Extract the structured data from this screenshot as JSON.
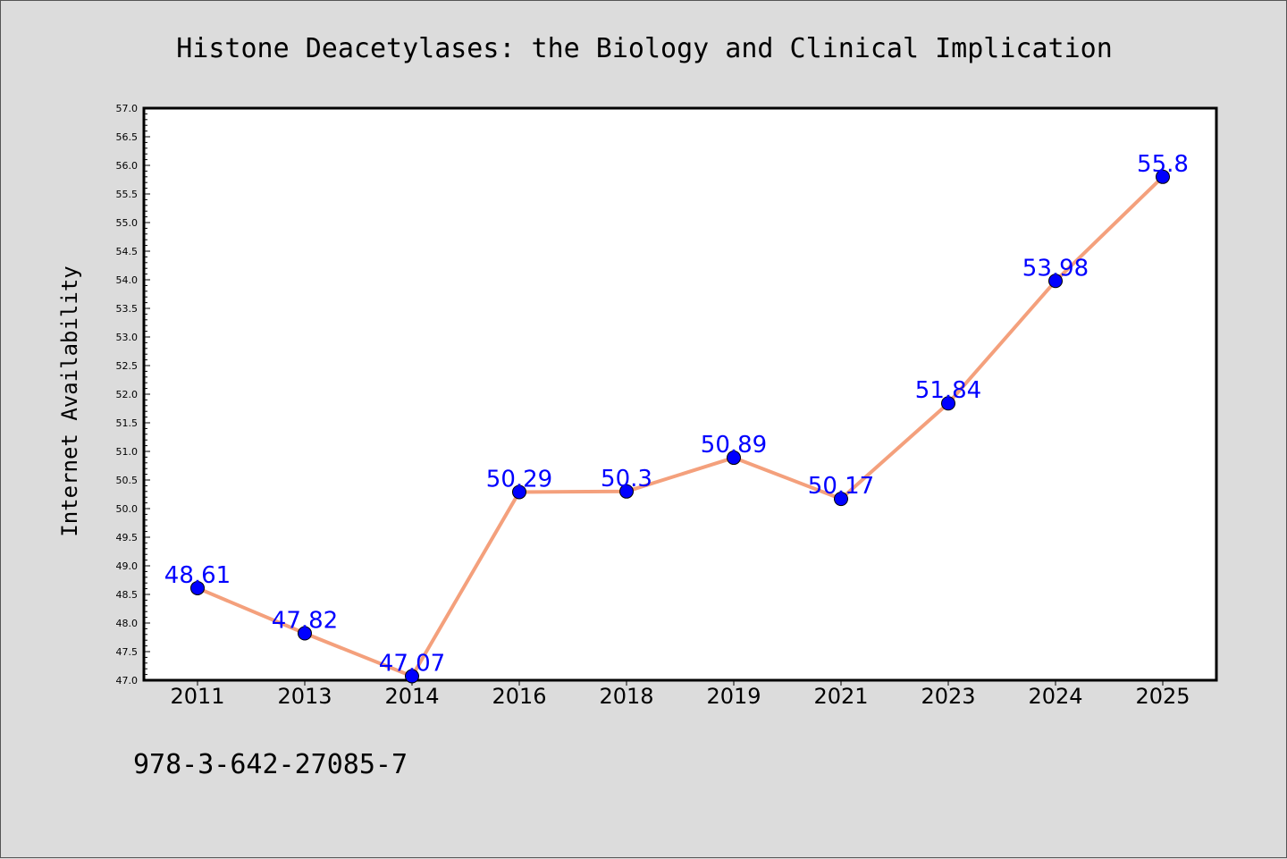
{
  "chart_data": {
    "type": "line",
    "title": "Histone Deacetylases: the Biology and Clinical Implication",
    "xlabel": "",
    "ylabel": "Internet Availability",
    "categories": [
      "2011",
      "2013",
      "2014",
      "2016",
      "2018",
      "2019",
      "2021",
      "2023",
      "2024",
      "2025"
    ],
    "series": [
      {
        "values": [
          48.61,
          47.82,
          47.07,
          50.29,
          50.3,
          50.89,
          50.17,
          51.84,
          53.98,
          55.8
        ],
        "data_labels": [
          "48.61",
          "47.82",
          "47.07",
          "50.29",
          "50.3",
          "50.89",
          "50.17",
          "51.84",
          "53.98",
          "55.8"
        ],
        "line_color": "#f4a07c",
        "marker_color": "#0000ff"
      }
    ],
    "ylim": [
      47.0,
      57.0
    ],
    "yticks": [
      "47.0",
      "47.5",
      "48.0",
      "48.5",
      "49.0",
      "49.5",
      "50.0",
      "50.5",
      "51.0",
      "51.5",
      "52.0",
      "52.5",
      "53.0",
      "53.5",
      "54.0",
      "54.5",
      "55.0",
      "55.5",
      "56.0",
      "56.5",
      "57.0"
    ],
    "grid": false,
    "legend": "none"
  },
  "footer": {
    "isbn": "978-3-642-27085-7"
  },
  "colors": {
    "background": "#dcdcdc",
    "plot_background": "#ffffff",
    "line": "#f4a07c",
    "marker": "#0000ff",
    "data_label": "#0000ff"
  }
}
